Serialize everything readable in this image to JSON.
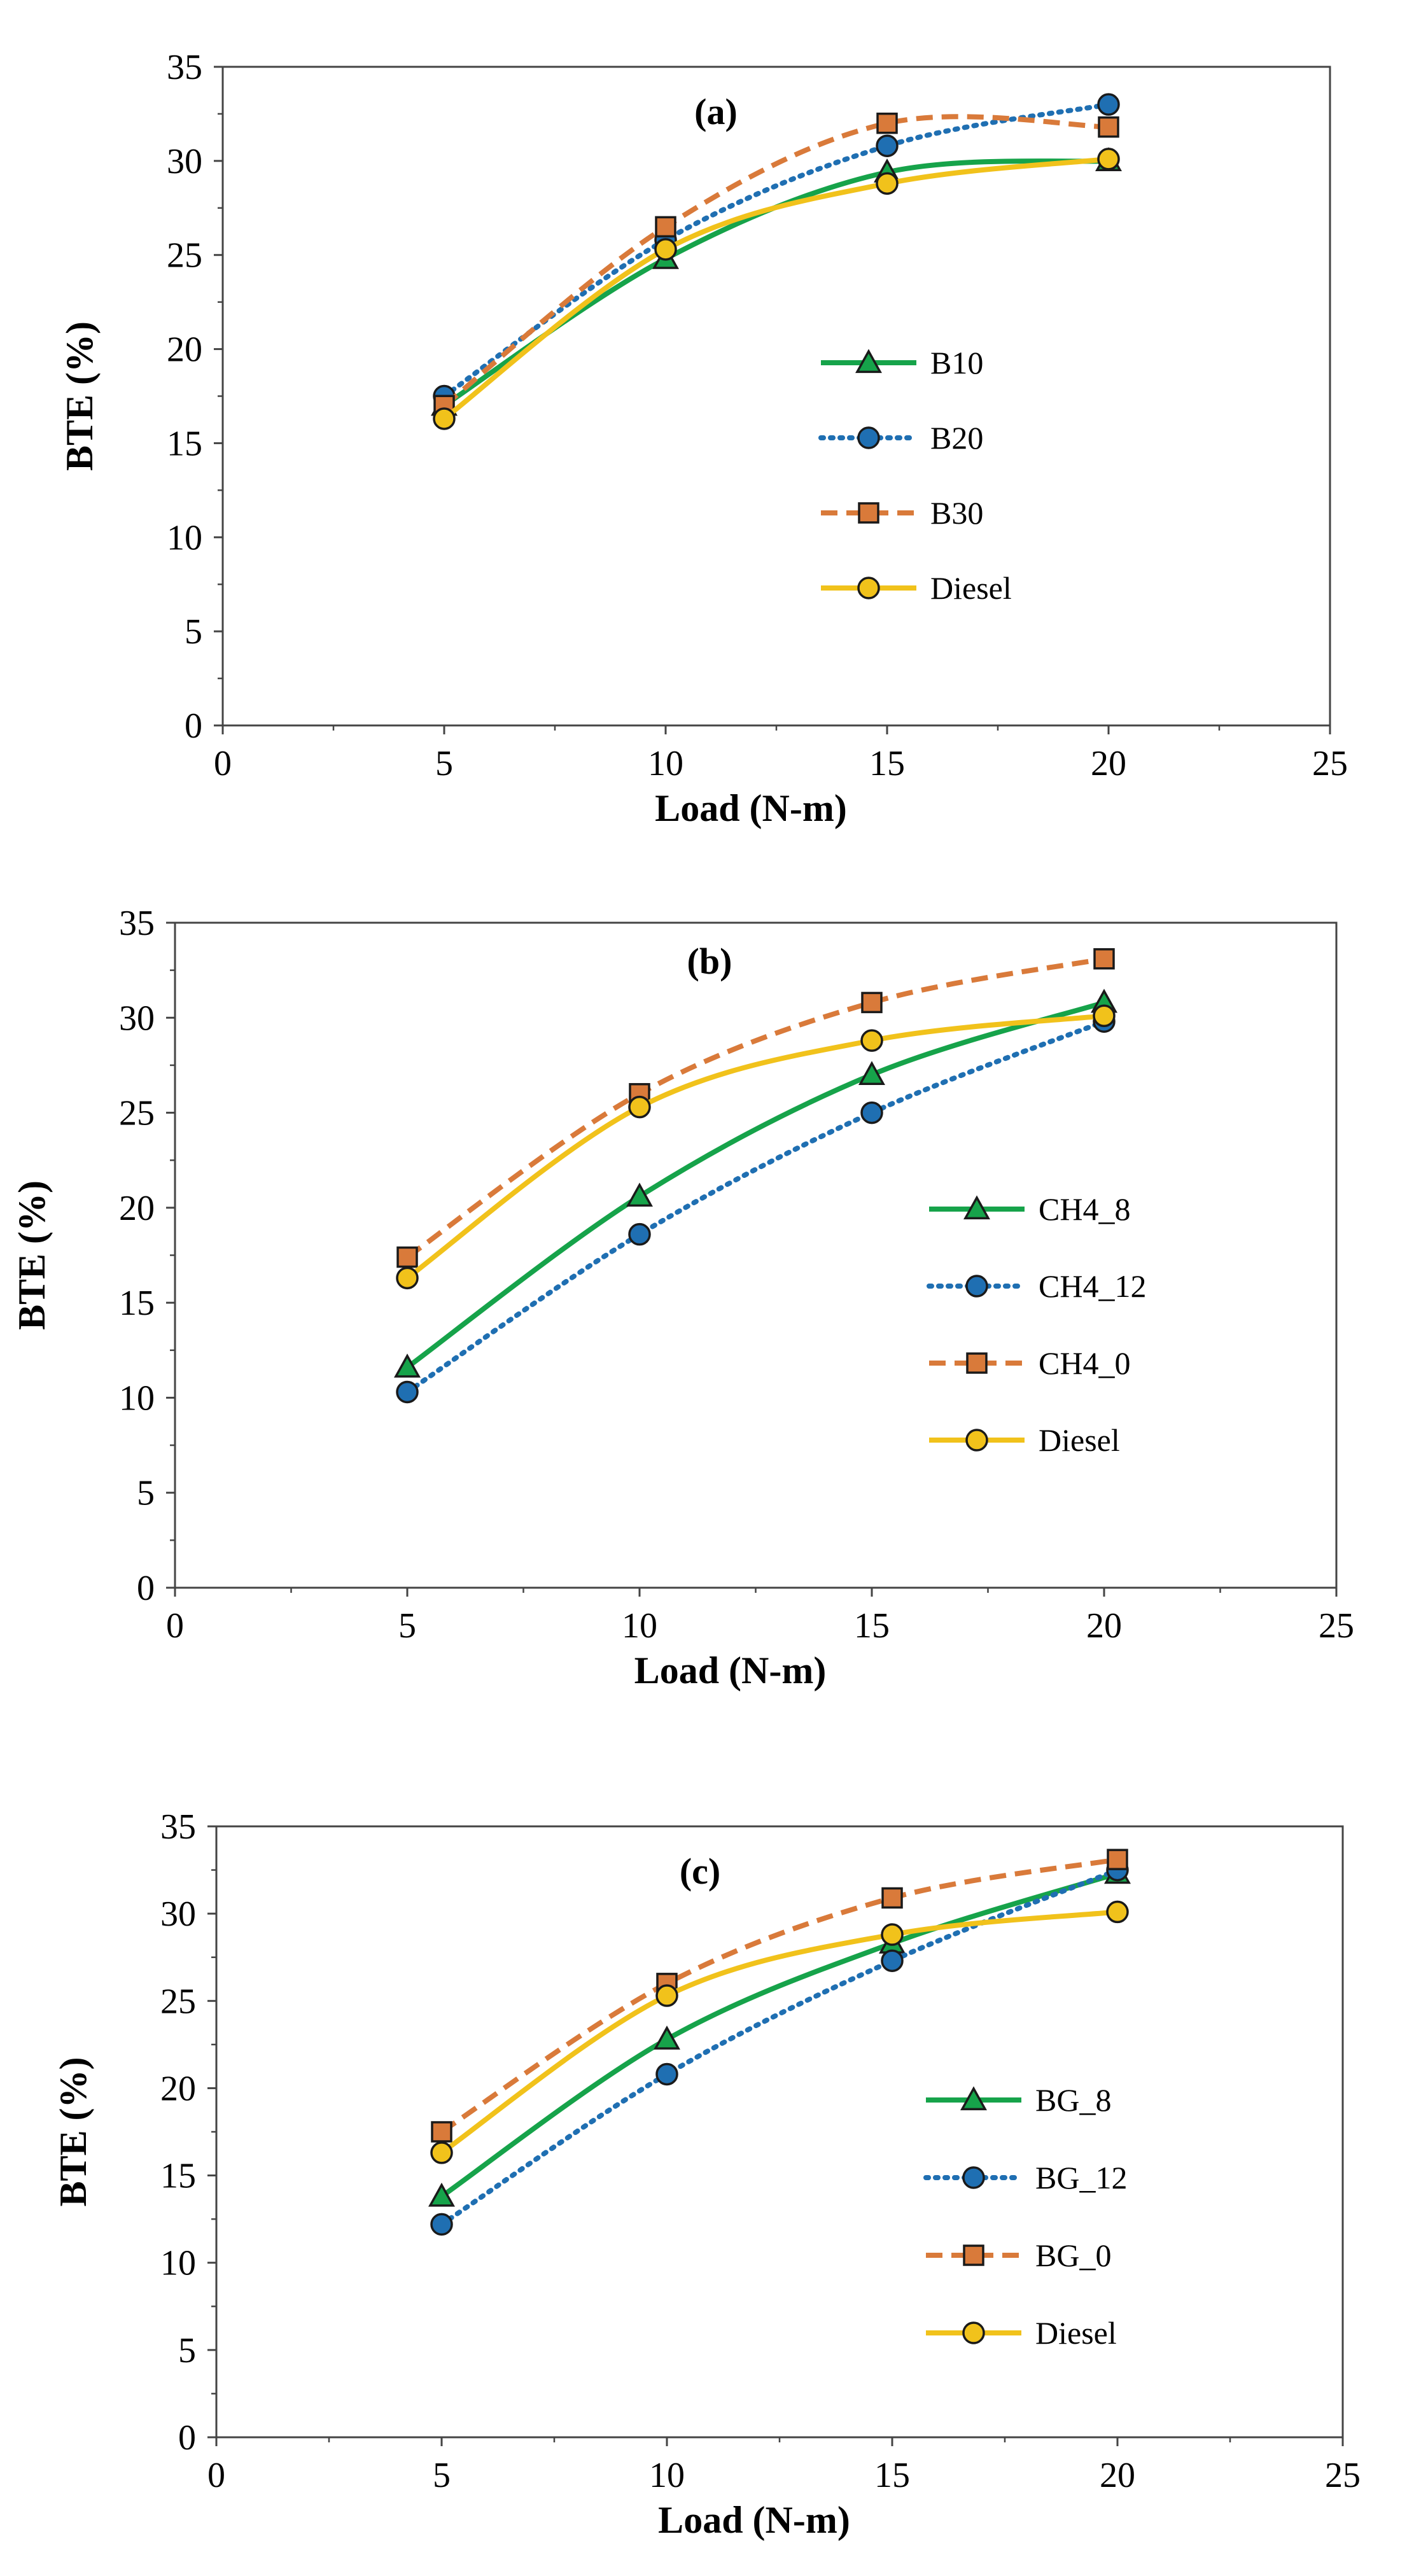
{
  "chart_data": [
    {
      "type": "line",
      "panel_label": "(a)",
      "xlabel": "Load (N-m)",
      "ylabel": "BTE (%)",
      "xlim": [
        0,
        25
      ],
      "ylim": [
        0,
        35
      ],
      "x_ticks": [
        0,
        5,
        10,
        15,
        20,
        25
      ],
      "y_ticks": [
        0,
        5,
        10,
        15,
        20,
        25,
        30,
        35
      ],
      "grid": false,
      "legend_position": "center-right",
      "x": [
        5,
        10,
        15,
        20
      ],
      "series": [
        {
          "name": "B10",
          "values": [
            17.0,
            24.8,
            29.4,
            30.0
          ],
          "color": "#16a34a",
          "dash": "solid",
          "marker": "triangle"
        },
        {
          "name": "B20",
          "values": [
            17.5,
            25.8,
            30.8,
            33.0
          ],
          "color": "#1f6fb2",
          "dash": "dotted",
          "marker": "circle"
        },
        {
          "name": "B30",
          "values": [
            17.0,
            26.5,
            32.0,
            31.8
          ],
          "color": "#d97a3a",
          "dash": "dashed",
          "marker": "square"
        },
        {
          "name": "Diesel",
          "values": [
            16.3,
            25.3,
            28.8,
            30.1
          ],
          "color": "#f1c21b",
          "dash": "solid",
          "marker": "circle"
        }
      ]
    },
    {
      "type": "line",
      "panel_label": "(b)",
      "xlabel": "Load (N-m)",
      "ylabel": "BTE (%)",
      "xlim": [
        0,
        25
      ],
      "ylim": [
        0,
        35
      ],
      "x_ticks": [
        0,
        5,
        10,
        15,
        20,
        25
      ],
      "y_ticks": [
        0,
        5,
        10,
        15,
        20,
        25,
        30,
        35
      ],
      "grid": false,
      "legend_position": "center-right",
      "x": [
        5,
        10,
        15,
        20
      ],
      "series": [
        {
          "name": "CH4_8",
          "values": [
            11.6,
            20.6,
            27.0,
            30.8
          ],
          "color": "#16a34a",
          "dash": "solid",
          "marker": "triangle"
        },
        {
          "name": "CH4_12",
          "values": [
            10.3,
            18.6,
            25.0,
            29.8
          ],
          "color": "#1f6fb2",
          "dash": "dotted",
          "marker": "circle"
        },
        {
          "name": "CH4_0",
          "values": [
            17.4,
            26.0,
            30.8,
            33.1
          ],
          "color": "#d97a3a",
          "dash": "dashed",
          "marker": "square"
        },
        {
          "name": "Diesel",
          "values": [
            16.3,
            25.3,
            28.8,
            30.1
          ],
          "color": "#f1c21b",
          "dash": "solid",
          "marker": "circle"
        }
      ]
    },
    {
      "type": "line",
      "panel_label": "(c)",
      "xlabel": "Load (N-m)",
      "ylabel": "BTE (%)",
      "xlim": [
        0,
        25
      ],
      "ylim": [
        0,
        35
      ],
      "x_ticks": [
        0,
        5,
        10,
        15,
        20,
        25
      ],
      "y_ticks": [
        0,
        5,
        10,
        15,
        20,
        25,
        30,
        35
      ],
      "grid": false,
      "legend_position": "center-right",
      "x": [
        5,
        10,
        15,
        20
      ],
      "series": [
        {
          "name": "BG_8",
          "values": [
            13.8,
            22.8,
            28.3,
            32.3
          ],
          "color": "#16a34a",
          "dash": "solid",
          "marker": "triangle"
        },
        {
          "name": "BG_12",
          "values": [
            12.2,
            20.8,
            27.3,
            32.5
          ],
          "color": "#1f6fb2",
          "dash": "dotted",
          "marker": "circle"
        },
        {
          "name": "BG_0",
          "values": [
            17.5,
            26.0,
            30.9,
            33.1
          ],
          "color": "#d97a3a",
          "dash": "dashed",
          "marker": "square"
        },
        {
          "name": "Diesel",
          "values": [
            16.3,
            25.3,
            28.8,
            30.1
          ],
          "color": "#f1c21b",
          "dash": "solid",
          "marker": "circle"
        }
      ]
    }
  ]
}
